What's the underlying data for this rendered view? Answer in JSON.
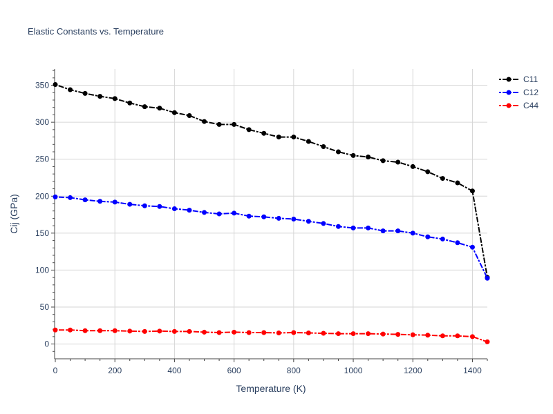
{
  "chart_data": {
    "type": "line",
    "title": "Elastic Constants vs. Temperature",
    "xlabel": "Temperature (K)",
    "ylabel": "Cij (GPa)",
    "xlim": [
      0,
      1450
    ],
    "ylim": [
      -20,
      372
    ],
    "x_ticks": [
      0,
      200,
      400,
      600,
      800,
      1000,
      1200,
      1400
    ],
    "y_ticks": [
      0,
      50,
      100,
      150,
      200,
      250,
      300,
      350
    ],
    "grid": true,
    "legend_position": "top-right",
    "x": [
      0,
      50,
      100,
      150,
      200,
      250,
      300,
      350,
      400,
      450,
      500,
      550,
      600,
      650,
      700,
      750,
      800,
      850,
      900,
      950,
      1000,
      1050,
      1100,
      1150,
      1200,
      1250,
      1300,
      1350,
      1400,
      1450
    ],
    "series": [
      {
        "name": "C11",
        "color": "#000000",
        "values": [
          351,
          344,
          339,
          335,
          332,
          326,
          321,
          319,
          313,
          309,
          301,
          297,
          297,
          290,
          285,
          280,
          280,
          274,
          267,
          260,
          255,
          253,
          248,
          246,
          240,
          233,
          224,
          218,
          207,
          90
        ]
      },
      {
        "name": "C12",
        "color": "#0000ff",
        "values": [
          199,
          198,
          195,
          193,
          192,
          189,
          187,
          186,
          183,
          181,
          178,
          176,
          177,
          173,
          172,
          170,
          169,
          166,
          163,
          159,
          157,
          157,
          153,
          153,
          150,
          145,
          142,
          137,
          131,
          89
        ]
      },
      {
        "name": "C44",
        "color": "#ff0000",
        "values": [
          19,
          19,
          18,
          18,
          18,
          17.5,
          17,
          17.5,
          17,
          17,
          16,
          15.5,
          16,
          15.5,
          15.5,
          15,
          15.5,
          15,
          14.5,
          14,
          14,
          14,
          13.5,
          13,
          12.5,
          12,
          11,
          11,
          10,
          3
        ]
      }
    ]
  }
}
